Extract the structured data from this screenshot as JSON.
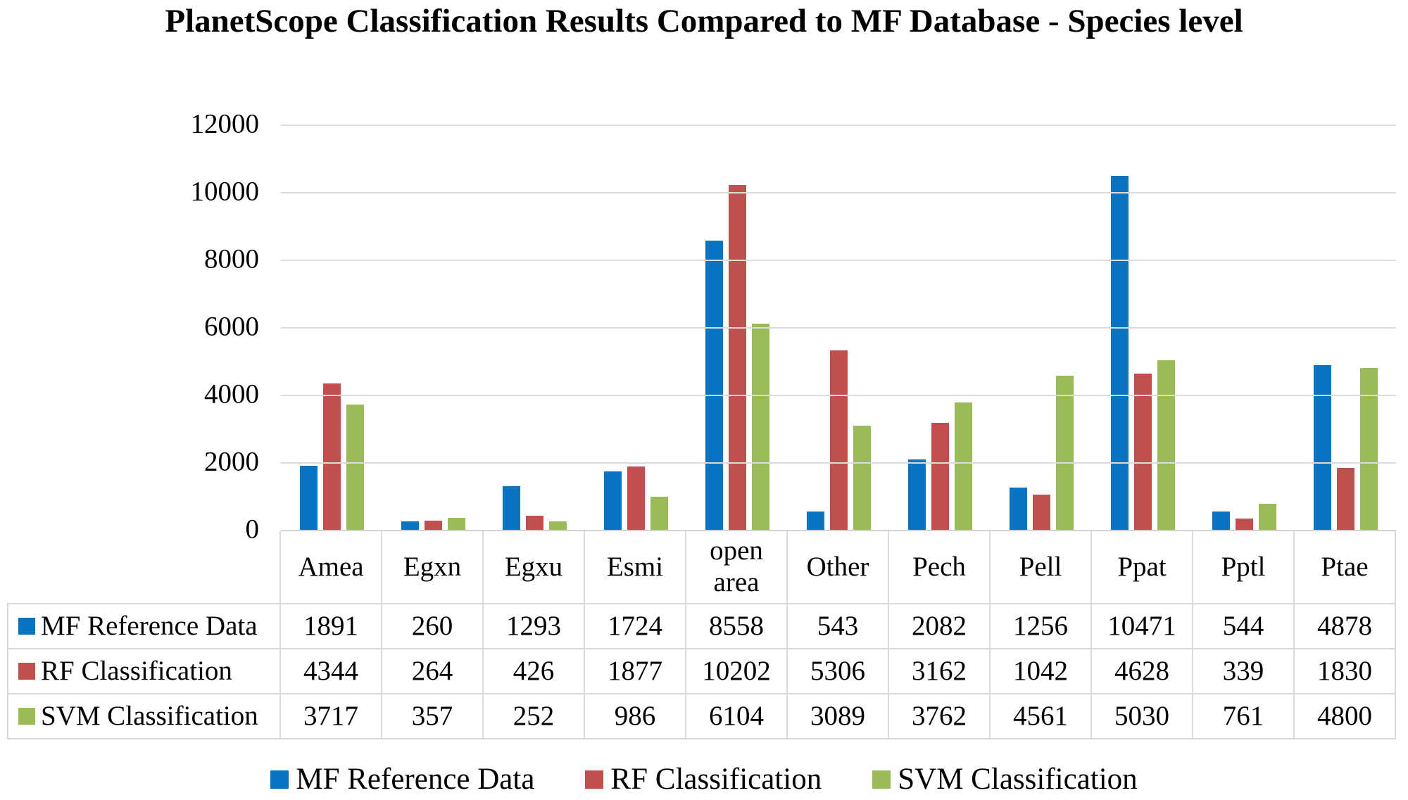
{
  "title": "PlanetScope Classification Results Compared to MF Database - Species level",
  "colors": {
    "mf_blue": "#0b74c2",
    "rf_red": "#c0504d",
    "svm_green": "#9bbb59",
    "gridline": "#dcdcdc",
    "table_border": "#d9d9d9",
    "text": "#000000",
    "background": "#ffffff"
  },
  "chart_data": {
    "type": "bar",
    "title": "PlanetScope Classification Results Compared to MF Database - Species level",
    "categories": [
      "Amea",
      "Egxn",
      "Egxu",
      "Esmi",
      "open area",
      "Other",
      "Pech",
      "Pell",
      "Ppat",
      "Pptl",
      "Ptae"
    ],
    "series": [
      {
        "name": "MF Reference Data",
        "color": "#0b74c2",
        "values": [
          1891,
          260,
          1293,
          1724,
          8558,
          543,
          2082,
          1256,
          10471,
          544,
          4878
        ]
      },
      {
        "name": "RF Classification",
        "color": "#c0504d",
        "values": [
          4344,
          264,
          426,
          1877,
          10202,
          5306,
          3162,
          1042,
          4628,
          339,
          1830
        ]
      },
      {
        "name": "SVM Classification",
        "color": "#9bbb59",
        "values": [
          3717,
          357,
          252,
          986,
          6104,
          3089,
          3762,
          4561,
          5030,
          761,
          4800
        ]
      }
    ],
    "xlabel": "",
    "ylabel": "",
    "ylim": [
      0,
      12000
    ],
    "yticks": [
      0,
      2000,
      4000,
      6000,
      8000,
      10000,
      12000
    ],
    "grid": true,
    "legend_position": "bottom",
    "data_table_shown": true
  }
}
